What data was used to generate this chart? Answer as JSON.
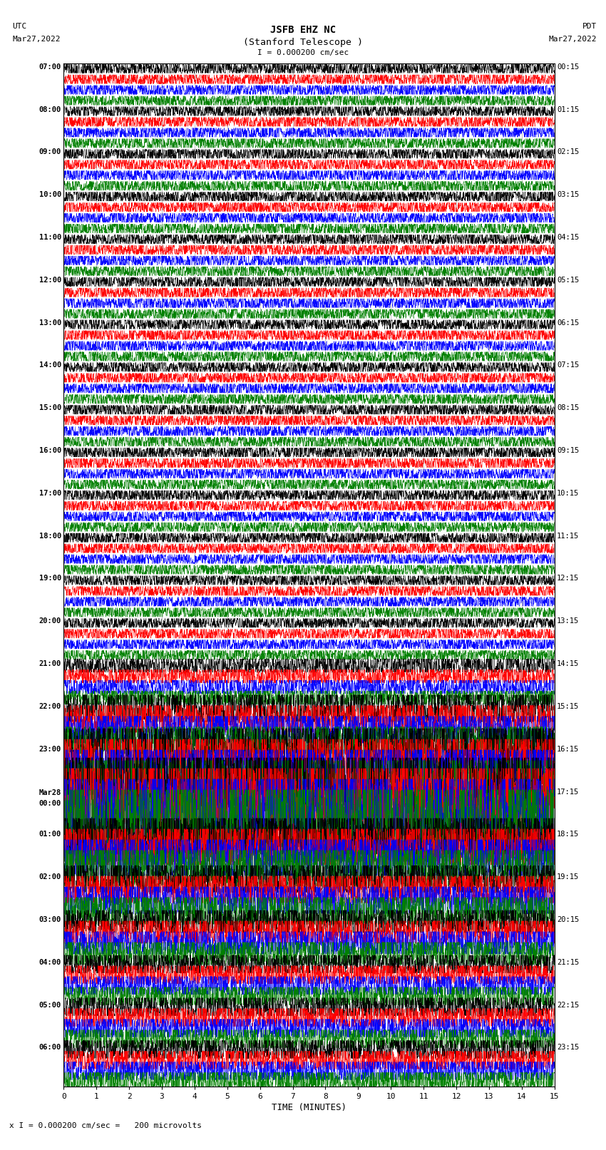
{
  "title_line1": "JSFB EHZ NC",
  "title_line2": "(Stanford Telescope )",
  "scale_label": "I = 0.000200 cm/sec",
  "footer_label": "x I = 0.000200 cm/sec =   200 microvolts",
  "utc_label": "UTC",
  "utc_date": "Mar27,2022",
  "pdt_label": "PDT",
  "pdt_date": "Mar27,2022",
  "xlabel": "TIME (MINUTES)",
  "left_times": [
    "07:00",
    "08:00",
    "09:00",
    "10:00",
    "11:00",
    "12:00",
    "13:00",
    "14:00",
    "15:00",
    "16:00",
    "17:00",
    "18:00",
    "19:00",
    "20:00",
    "21:00",
    "22:00",
    "23:00",
    "Mar28\n00:00",
    "01:00",
    "02:00",
    "03:00",
    "04:00",
    "05:00",
    "06:00"
  ],
  "right_times": [
    "00:15",
    "01:15",
    "02:15",
    "03:15",
    "04:15",
    "05:15",
    "06:15",
    "07:15",
    "08:15",
    "09:15",
    "10:15",
    "11:15",
    "12:15",
    "13:15",
    "14:15",
    "15:15",
    "16:15",
    "17:15",
    "18:15",
    "19:15",
    "20:15",
    "21:15",
    "22:15",
    "23:15"
  ],
  "num_rows": 24,
  "traces_per_row": 4,
  "colors": [
    "black",
    "red",
    "blue",
    "green"
  ],
  "xlim": [
    0,
    15
  ],
  "xticks": [
    0,
    1,
    2,
    3,
    4,
    5,
    6,
    7,
    8,
    9,
    10,
    11,
    12,
    13,
    14,
    15
  ],
  "bg_color": "white",
  "amplitude_scales": [
    1.0,
    1.0,
    1.0,
    1.0,
    1.0,
    1.0,
    1.0,
    1.0,
    1.0,
    1.0,
    1.0,
    1.0,
    1.0,
    1.0,
    1.5,
    3.0,
    5.0,
    8.0,
    4.0,
    3.0,
    2.5,
    2.0,
    2.0,
    2.0
  ]
}
